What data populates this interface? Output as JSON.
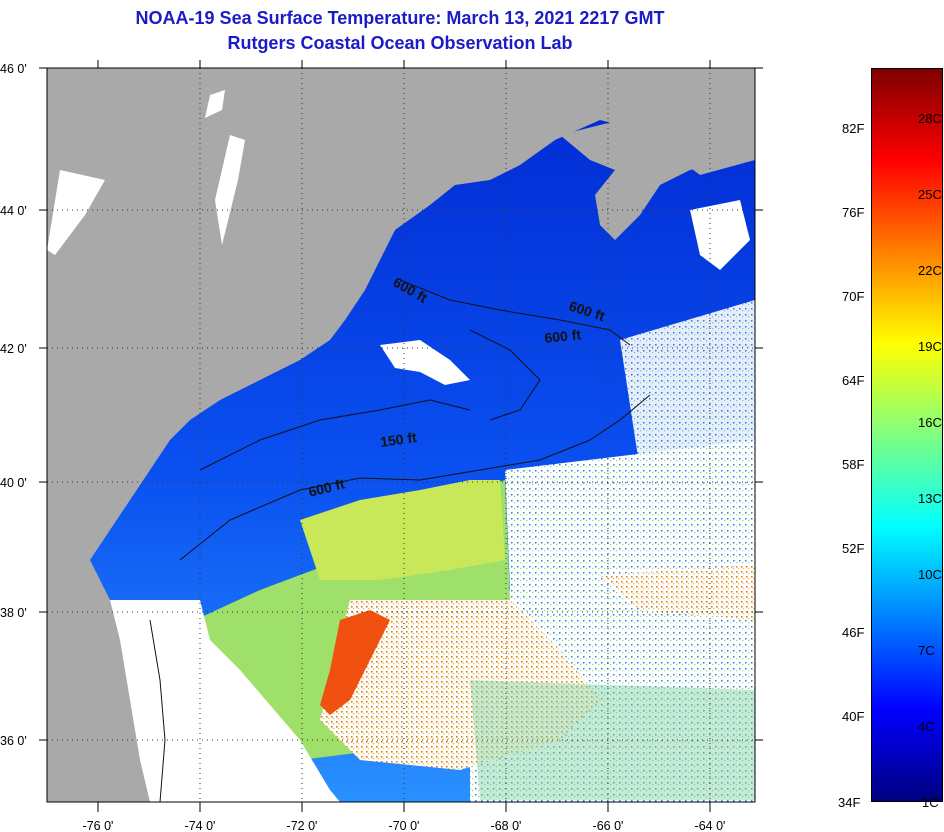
{
  "title": {
    "line1": "NOAA-19 Sea Surface Temperature:  March 13, 2021 2217 GMT",
    "line2": "Rutgers Coastal Ocean Observation Lab"
  },
  "colors": {
    "title": "#1b1bc8",
    "land": "#a9a9a9",
    "cloud": "#ffffff",
    "cold_water": "#0a3cdc",
    "warm_water": "#f04010"
  },
  "map_axes": {
    "lat_ticks": [
      "46 0'",
      "44 0'",
      "42 0'",
      "40 0'",
      "38 0'",
      "36 0'"
    ],
    "lon_ticks": [
      "-76 0'",
      "-74 0'",
      "-72 0'",
      "-70 0'",
      "-68 0'",
      "-66 0'",
      "-64 0'"
    ]
  },
  "contours": [
    {
      "label": "600 ft"
    },
    {
      "label": "600 ft"
    },
    {
      "label": "600 ft"
    },
    {
      "label": "150 ft"
    },
    {
      "label": "600 ft"
    }
  ],
  "colorbar": {
    "fahrenheit": [
      "82F",
      "76F",
      "70F",
      "64F",
      "58F",
      "52F",
      "46F",
      "40F",
      "34F"
    ],
    "celsius": [
      "28C",
      "25C",
      "22C",
      "19C",
      "16C",
      "13C",
      "10C",
      "7C",
      "4C",
      "1C"
    ],
    "gradient": [
      "#00007f",
      "#0000ff",
      "#0080ff",
      "#00ffff",
      "#80ff80",
      "#ffff00",
      "#ff8000",
      "#ff0000",
      "#7f0000"
    ]
  }
}
